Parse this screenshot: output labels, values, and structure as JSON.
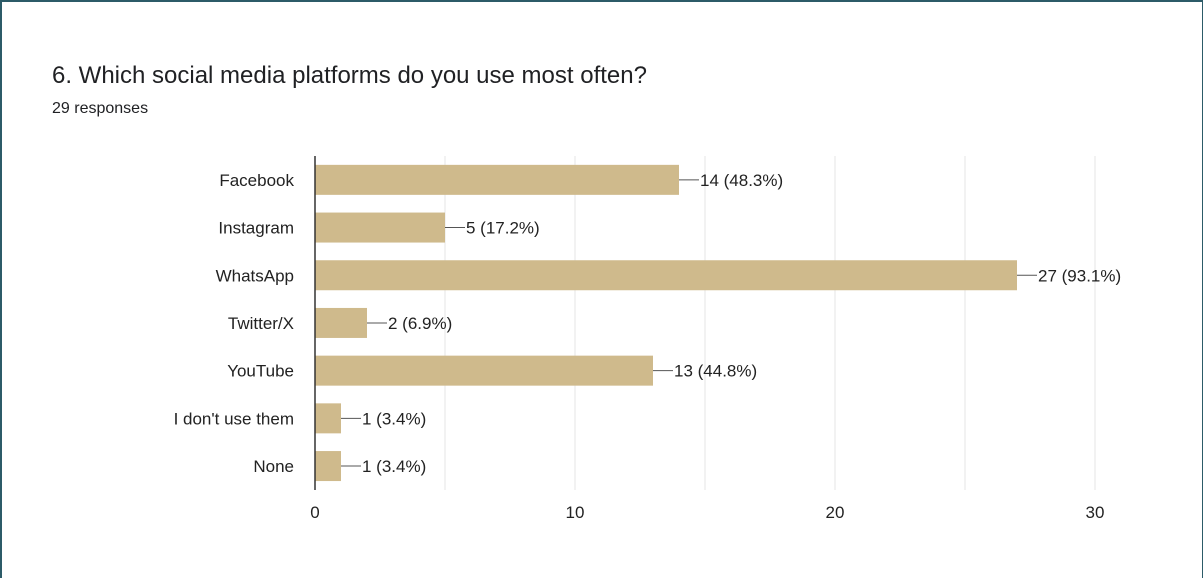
{
  "question": {
    "title": "6. Which social media platforms do you use most often?",
    "responses": "29 responses"
  },
  "colors": {
    "bar": "#cfba8c",
    "grid": "#e6e6e6",
    "axis": "#333333",
    "border": "#2c5b68"
  },
  "chart_data": {
    "type": "bar",
    "orientation": "horizontal",
    "categories": [
      "Facebook",
      "Instagram",
      "WhatsApp",
      "Twitter/X",
      "YouTube",
      "I don't use them",
      "None"
    ],
    "values": [
      14,
      5,
      27,
      2,
      13,
      1,
      1
    ],
    "value_labels": [
      "14 (48.3%)",
      "5 (17.2%)",
      "27 (93.1%)",
      "2 (6.9%)",
      "13 (44.8%)",
      "1 (3.4%)",
      "1 (3.4%)"
    ],
    "xlim": [
      0,
      30
    ],
    "x_ticks": [
      0,
      10,
      20,
      30
    ],
    "x_tick_labels": [
      "0",
      "10",
      "20",
      "30"
    ],
    "grid": true,
    "legend": "none"
  }
}
